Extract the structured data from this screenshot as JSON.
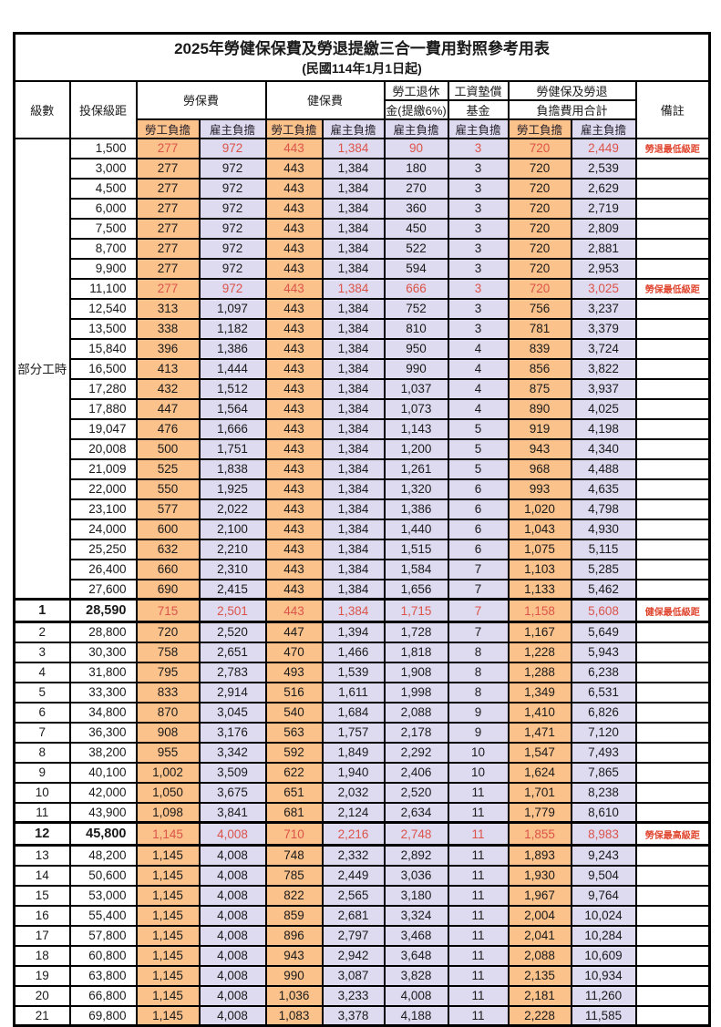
{
  "title": "2025年勞健保保費及勞退提繳三合一費用對照參考用表",
  "subtitle": "(民國114年1月1日起)",
  "colors": {
    "employee_column_bg": "#FBC28C",
    "employer_column_bg": "#DEDAF0",
    "highlight_text": "#DC5449",
    "remark_text": "#E0462F",
    "grid_border": "#000000"
  },
  "table": {
    "headers": {
      "level": "級數",
      "bracket": "投保級距",
      "labor_insurance": "勞保費",
      "health_insurance": "健保費",
      "pension_line1": "勞工退休",
      "pension_line2": "金(提繳6%)",
      "wage_fund_line1": "工資墊償",
      "wage_fund_line2": "基金",
      "total_line1": "勞健保及勞退",
      "total_line2": "負擔費用合計",
      "remark": "備註",
      "employee": "勞工負擔",
      "employer": "雇主負擔"
    },
    "part_time_label": "部分工時",
    "part_time_row_span": 23,
    "rows": [
      {
        "level": "",
        "bracket": "1,500",
        "labor_employee": "277",
        "labor_employer": "972",
        "health_employee": "443",
        "health_employer": "1,384",
        "pension_employer": "90",
        "wage_fund_employer": "3",
        "total_employee": "720",
        "total_employer": "2,449",
        "remark": "勞退最低級距",
        "highlight": true,
        "bold": false
      },
      {
        "level": "",
        "bracket": "3,000",
        "labor_employee": "277",
        "labor_employer": "972",
        "health_employee": "443",
        "health_employer": "1,384",
        "pension_employer": "180",
        "wage_fund_employer": "3",
        "total_employee": "720",
        "total_employer": "2,539",
        "remark": "",
        "highlight": false,
        "bold": false
      },
      {
        "level": "",
        "bracket": "4,500",
        "labor_employee": "277",
        "labor_employer": "972",
        "health_employee": "443",
        "health_employer": "1,384",
        "pension_employer": "270",
        "wage_fund_employer": "3",
        "total_employee": "720",
        "total_employer": "2,629",
        "remark": "",
        "highlight": false,
        "bold": false
      },
      {
        "level": "",
        "bracket": "6,000",
        "labor_employee": "277",
        "labor_employer": "972",
        "health_employee": "443",
        "health_employer": "1,384",
        "pension_employer": "360",
        "wage_fund_employer": "3",
        "total_employee": "720",
        "total_employer": "2,719",
        "remark": "",
        "highlight": false,
        "bold": false
      },
      {
        "level": "",
        "bracket": "7,500",
        "labor_employee": "277",
        "labor_employer": "972",
        "health_employee": "443",
        "health_employer": "1,384",
        "pension_employer": "450",
        "wage_fund_employer": "3",
        "total_employee": "720",
        "total_employer": "2,809",
        "remark": "",
        "highlight": false,
        "bold": false
      },
      {
        "level": "",
        "bracket": "8,700",
        "labor_employee": "277",
        "labor_employer": "972",
        "health_employee": "443",
        "health_employer": "1,384",
        "pension_employer": "522",
        "wage_fund_employer": "3",
        "total_employee": "720",
        "total_employer": "2,881",
        "remark": "",
        "highlight": false,
        "bold": false
      },
      {
        "level": "",
        "bracket": "9,900",
        "labor_employee": "277",
        "labor_employer": "972",
        "health_employee": "443",
        "health_employer": "1,384",
        "pension_employer": "594",
        "wage_fund_employer": "3",
        "total_employee": "720",
        "total_employer": "2,953",
        "remark": "",
        "highlight": false,
        "bold": false
      },
      {
        "level": "",
        "bracket": "11,100",
        "labor_employee": "277",
        "labor_employer": "972",
        "health_employee": "443",
        "health_employer": "1,384",
        "pension_employer": "666",
        "wage_fund_employer": "3",
        "total_employee": "720",
        "total_employer": "3,025",
        "remark": "勞保最低級距",
        "highlight": true,
        "bold": false
      },
      {
        "level": "",
        "bracket": "12,540",
        "labor_employee": "313",
        "labor_employer": "1,097",
        "health_employee": "443",
        "health_employer": "1,384",
        "pension_employer": "752",
        "wage_fund_employer": "3",
        "total_employee": "756",
        "total_employer": "3,237",
        "remark": "",
        "highlight": false,
        "bold": false
      },
      {
        "level": "",
        "bracket": "13,500",
        "labor_employee": "338",
        "labor_employer": "1,182",
        "health_employee": "443",
        "health_employer": "1,384",
        "pension_employer": "810",
        "wage_fund_employer": "3",
        "total_employee": "781",
        "total_employer": "3,379",
        "remark": "",
        "highlight": false,
        "bold": false
      },
      {
        "level": "",
        "bracket": "15,840",
        "labor_employee": "396",
        "labor_employer": "1,386",
        "health_employee": "443",
        "health_employer": "1,384",
        "pension_employer": "950",
        "wage_fund_employer": "4",
        "total_employee": "839",
        "total_employer": "3,724",
        "remark": "",
        "highlight": false,
        "bold": false
      },
      {
        "level": "",
        "bracket": "16,500",
        "labor_employee": "413",
        "labor_employer": "1,444",
        "health_employee": "443",
        "health_employer": "1,384",
        "pension_employer": "990",
        "wage_fund_employer": "4",
        "total_employee": "856",
        "total_employer": "3,822",
        "remark": "",
        "highlight": false,
        "bold": false
      },
      {
        "level": "",
        "bracket": "17,280",
        "labor_employee": "432",
        "labor_employer": "1,512",
        "health_employee": "443",
        "health_employer": "1,384",
        "pension_employer": "1,037",
        "wage_fund_employer": "4",
        "total_employee": "875",
        "total_employer": "3,937",
        "remark": "",
        "highlight": false,
        "bold": false
      },
      {
        "level": "",
        "bracket": "17,880",
        "labor_employee": "447",
        "labor_employer": "1,564",
        "health_employee": "443",
        "health_employer": "1,384",
        "pension_employer": "1,073",
        "wage_fund_employer": "4",
        "total_employee": "890",
        "total_employer": "4,025",
        "remark": "",
        "highlight": false,
        "bold": false
      },
      {
        "level": "",
        "bracket": "19,047",
        "labor_employee": "476",
        "labor_employer": "1,666",
        "health_employee": "443",
        "health_employer": "1,384",
        "pension_employer": "1,143",
        "wage_fund_employer": "5",
        "total_employee": "919",
        "total_employer": "4,198",
        "remark": "",
        "highlight": false,
        "bold": false
      },
      {
        "level": "",
        "bracket": "20,008",
        "labor_employee": "500",
        "labor_employer": "1,751",
        "health_employee": "443",
        "health_employer": "1,384",
        "pension_employer": "1,200",
        "wage_fund_employer": "5",
        "total_employee": "943",
        "total_employer": "4,340",
        "remark": "",
        "highlight": false,
        "bold": false
      },
      {
        "level": "",
        "bracket": "21,009",
        "labor_employee": "525",
        "labor_employer": "1,838",
        "health_employee": "443",
        "health_employer": "1,384",
        "pension_employer": "1,261",
        "wage_fund_employer": "5",
        "total_employee": "968",
        "total_employer": "4,488",
        "remark": "",
        "highlight": false,
        "bold": false
      },
      {
        "level": "",
        "bracket": "22,000",
        "labor_employee": "550",
        "labor_employer": "1,925",
        "health_employee": "443",
        "health_employer": "1,384",
        "pension_employer": "1,320",
        "wage_fund_employer": "6",
        "total_employee": "993",
        "total_employer": "4,635",
        "remark": "",
        "highlight": false,
        "bold": false
      },
      {
        "level": "",
        "bracket": "23,100",
        "labor_employee": "577",
        "labor_employer": "2,022",
        "health_employee": "443",
        "health_employer": "1,384",
        "pension_employer": "1,386",
        "wage_fund_employer": "6",
        "total_employee": "1,020",
        "total_employer": "4,798",
        "remark": "",
        "highlight": false,
        "bold": false
      },
      {
        "level": "",
        "bracket": "24,000",
        "labor_employee": "600",
        "labor_employer": "2,100",
        "health_employee": "443",
        "health_employer": "1,384",
        "pension_employer": "1,440",
        "wage_fund_employer": "6",
        "total_employee": "1,043",
        "total_employer": "4,930",
        "remark": "",
        "highlight": false,
        "bold": false
      },
      {
        "level": "",
        "bracket": "25,250",
        "labor_employee": "632",
        "labor_employer": "2,210",
        "health_employee": "443",
        "health_employer": "1,384",
        "pension_employer": "1,515",
        "wage_fund_employer": "6",
        "total_employee": "1,075",
        "total_employer": "5,115",
        "remark": "",
        "highlight": false,
        "bold": false
      },
      {
        "level": "",
        "bracket": "26,400",
        "labor_employee": "660",
        "labor_employer": "2,310",
        "health_employee": "443",
        "health_employer": "1,384",
        "pension_employer": "1,584",
        "wage_fund_employer": "7",
        "total_employee": "1,103",
        "total_employer": "5,285",
        "remark": "",
        "highlight": false,
        "bold": false
      },
      {
        "level": "",
        "bracket": "27,600",
        "labor_employee": "690",
        "labor_employer": "2,415",
        "health_employee": "443",
        "health_employer": "1,384",
        "pension_employer": "1,656",
        "wage_fund_employer": "7",
        "total_employee": "1,133",
        "total_employer": "5,462",
        "remark": "",
        "highlight": false,
        "bold": false
      },
      {
        "level": "1",
        "bracket": "28,590",
        "labor_employee": "715",
        "labor_employer": "2,501",
        "health_employee": "443",
        "health_employer": "1,384",
        "pension_employer": "1,715",
        "wage_fund_employer": "7",
        "total_employee": "1,158",
        "total_employer": "5,608",
        "remark": "健保最低級距",
        "highlight": true,
        "bold": true
      },
      {
        "level": "2",
        "bracket": "28,800",
        "labor_employee": "720",
        "labor_employer": "2,520",
        "health_employee": "447",
        "health_employer": "1,394",
        "pension_employer": "1,728",
        "wage_fund_employer": "7",
        "total_employee": "1,167",
        "total_employer": "5,649",
        "remark": "",
        "highlight": false,
        "bold": false
      },
      {
        "level": "3",
        "bracket": "30,300",
        "labor_employee": "758",
        "labor_employer": "2,651",
        "health_employee": "470",
        "health_employer": "1,466",
        "pension_employer": "1,818",
        "wage_fund_employer": "8",
        "total_employee": "1,228",
        "total_employer": "5,943",
        "remark": "",
        "highlight": false,
        "bold": false
      },
      {
        "level": "4",
        "bracket": "31,800",
        "labor_employee": "795",
        "labor_employer": "2,783",
        "health_employee": "493",
        "health_employer": "1,539",
        "pension_employer": "1,908",
        "wage_fund_employer": "8",
        "total_employee": "1,288",
        "total_employer": "6,238",
        "remark": "",
        "highlight": false,
        "bold": false
      },
      {
        "level": "5",
        "bracket": "33,300",
        "labor_employee": "833",
        "labor_employer": "2,914",
        "health_employee": "516",
        "health_employer": "1,611",
        "pension_employer": "1,998",
        "wage_fund_employer": "8",
        "total_employee": "1,349",
        "total_employer": "6,531",
        "remark": "",
        "highlight": false,
        "bold": false
      },
      {
        "level": "6",
        "bracket": "34,800",
        "labor_employee": "870",
        "labor_employer": "3,045",
        "health_employee": "540",
        "health_employer": "1,684",
        "pension_employer": "2,088",
        "wage_fund_employer": "9",
        "total_employee": "1,410",
        "total_employer": "6,826",
        "remark": "",
        "highlight": false,
        "bold": false
      },
      {
        "level": "7",
        "bracket": "36,300",
        "labor_employee": "908",
        "labor_employer": "3,176",
        "health_employee": "563",
        "health_employer": "1,757",
        "pension_employer": "2,178",
        "wage_fund_employer": "9",
        "total_employee": "1,471",
        "total_employer": "7,120",
        "remark": "",
        "highlight": false,
        "bold": false
      },
      {
        "level": "8",
        "bracket": "38,200",
        "labor_employee": "955",
        "labor_employer": "3,342",
        "health_employee": "592",
        "health_employer": "1,849",
        "pension_employer": "2,292",
        "wage_fund_employer": "10",
        "total_employee": "1,547",
        "total_employer": "7,493",
        "remark": "",
        "highlight": false,
        "bold": false
      },
      {
        "level": "9",
        "bracket": "40,100",
        "labor_employee": "1,002",
        "labor_employer": "3,509",
        "health_employee": "622",
        "health_employer": "1,940",
        "pension_employer": "2,406",
        "wage_fund_employer": "10",
        "total_employee": "1,624",
        "total_employer": "7,865",
        "remark": "",
        "highlight": false,
        "bold": false
      },
      {
        "level": "10",
        "bracket": "42,000",
        "labor_employee": "1,050",
        "labor_employer": "3,675",
        "health_employee": "651",
        "health_employer": "2,032",
        "pension_employer": "2,520",
        "wage_fund_employer": "11",
        "total_employee": "1,701",
        "total_employer": "8,238",
        "remark": "",
        "highlight": false,
        "bold": false
      },
      {
        "level": "11",
        "bracket": "43,900",
        "labor_employee": "1,098",
        "labor_employer": "3,841",
        "health_employee": "681",
        "health_employer": "2,124",
        "pension_employer": "2,634",
        "wage_fund_employer": "11",
        "total_employee": "1,779",
        "total_employer": "8,610",
        "remark": "",
        "highlight": false,
        "bold": false
      },
      {
        "level": "12",
        "bracket": "45,800",
        "labor_employee": "1,145",
        "labor_employer": "4,008",
        "health_employee": "710",
        "health_employer": "2,216",
        "pension_employer": "2,748",
        "wage_fund_employer": "11",
        "total_employee": "1,855",
        "total_employer": "8,983",
        "remark": "勞保最高級距",
        "highlight": true,
        "bold": true
      },
      {
        "level": "13",
        "bracket": "48,200",
        "labor_employee": "1,145",
        "labor_employer": "4,008",
        "health_employee": "748",
        "health_employer": "2,332",
        "pension_employer": "2,892",
        "wage_fund_employer": "11",
        "total_employee": "1,893",
        "total_employer": "9,243",
        "remark": "",
        "highlight": false,
        "bold": false
      },
      {
        "level": "14",
        "bracket": "50,600",
        "labor_employee": "1,145",
        "labor_employer": "4,008",
        "health_employee": "785",
        "health_employer": "2,449",
        "pension_employer": "3,036",
        "wage_fund_employer": "11",
        "total_employee": "1,930",
        "total_employer": "9,504",
        "remark": "",
        "highlight": false,
        "bold": false
      },
      {
        "level": "15",
        "bracket": "53,000",
        "labor_employee": "1,145",
        "labor_employer": "4,008",
        "health_employee": "822",
        "health_employer": "2,565",
        "pension_employer": "3,180",
        "wage_fund_employer": "11",
        "total_employee": "1,967",
        "total_employer": "9,764",
        "remark": "",
        "highlight": false,
        "bold": false
      },
      {
        "level": "16",
        "bracket": "55,400",
        "labor_employee": "1,145",
        "labor_employer": "4,008",
        "health_employee": "859",
        "health_employer": "2,681",
        "pension_employer": "3,324",
        "wage_fund_employer": "11",
        "total_employee": "2,004",
        "total_employer": "10,024",
        "remark": "",
        "highlight": false,
        "bold": false
      },
      {
        "level": "17",
        "bracket": "57,800",
        "labor_employee": "1,145",
        "labor_employer": "4,008",
        "health_employee": "896",
        "health_employer": "2,797",
        "pension_employer": "3,468",
        "wage_fund_employer": "11",
        "total_employee": "2,041",
        "total_employer": "10,284",
        "remark": "",
        "highlight": false,
        "bold": false
      },
      {
        "level": "18",
        "bracket": "60,800",
        "labor_employee": "1,145",
        "labor_employer": "4,008",
        "health_employee": "943",
        "health_employer": "2,942",
        "pension_employer": "3,648",
        "wage_fund_employer": "11",
        "total_employee": "2,088",
        "total_employer": "10,609",
        "remark": "",
        "highlight": false,
        "bold": false
      },
      {
        "level": "19",
        "bracket": "63,800",
        "labor_employee": "1,145",
        "labor_employer": "4,008",
        "health_employee": "990",
        "health_employer": "3,087",
        "pension_employer": "3,828",
        "wage_fund_employer": "11",
        "total_employee": "2,135",
        "total_employer": "10,934",
        "remark": "",
        "highlight": false,
        "bold": false
      },
      {
        "level": "20",
        "bracket": "66,800",
        "labor_employee": "1,145",
        "labor_employer": "4,008",
        "health_employee": "1,036",
        "health_employer": "3,233",
        "pension_employer": "4,008",
        "wage_fund_employer": "11",
        "total_employee": "2,181",
        "total_employer": "11,260",
        "remark": "",
        "highlight": false,
        "bold": false
      },
      {
        "level": "21",
        "bracket": "69,800",
        "labor_employee": "1,145",
        "labor_employer": "4,008",
        "health_employee": "1,083",
        "health_employer": "3,378",
        "pension_employer": "4,188",
        "wage_fund_employer": "11",
        "total_employee": "2,228",
        "total_employer": "11,585",
        "remark": "",
        "highlight": false,
        "bold": false
      }
    ]
  }
}
